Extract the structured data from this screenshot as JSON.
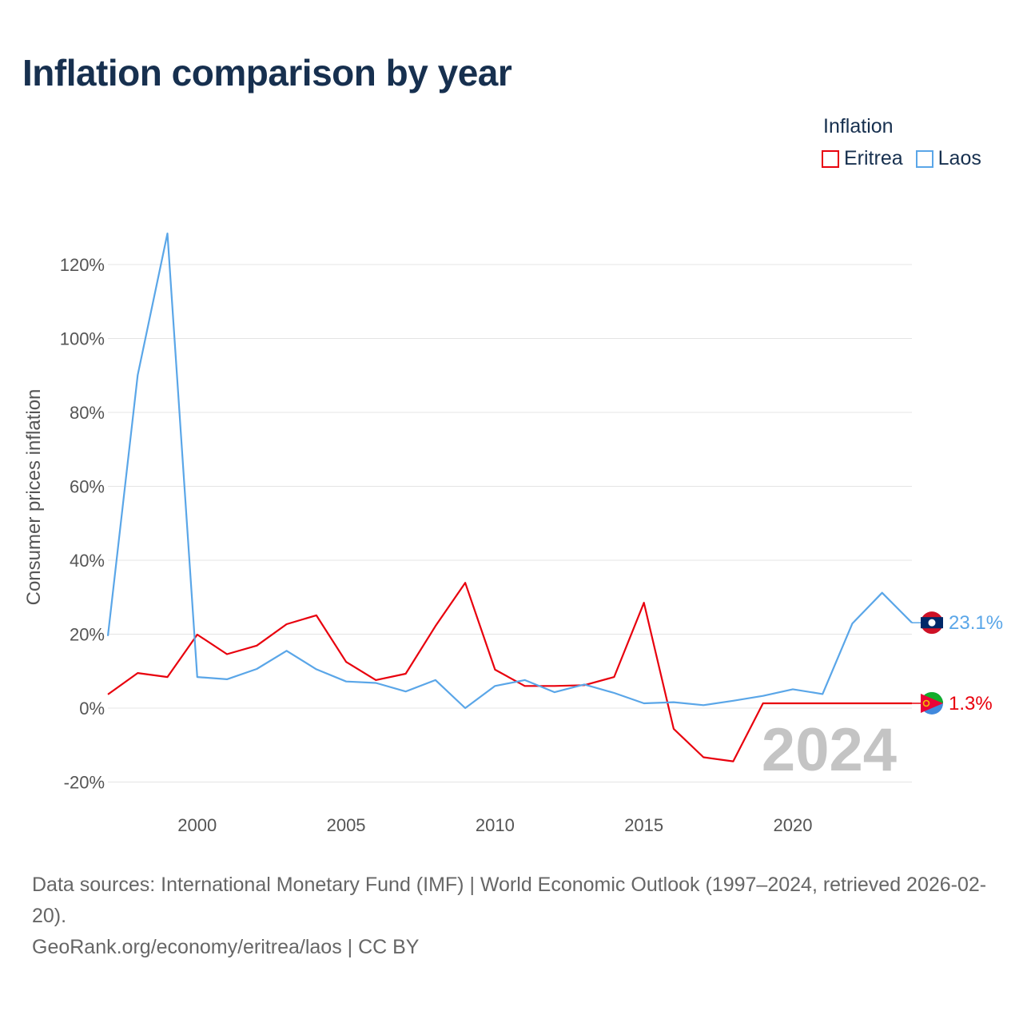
{
  "title": "Inflation comparison by year",
  "legend": {
    "title": "Inflation",
    "items": [
      {
        "label": "Eritrea",
        "color": "#e8000d"
      },
      {
        "label": "Laos",
        "color": "#5aa6e8"
      }
    ]
  },
  "year_watermark": "2024",
  "footer": {
    "line1": "Data sources: International Monetary Fund (IMF) | World Economic Outlook (1997–2024, retrieved 2026-02-20).",
    "line2": "GeoRank.org/economy/eritrea/laos | CC BY"
  },
  "chart_data": {
    "type": "line",
    "title": "Inflation comparison by year",
    "xlabel": "",
    "ylabel": "Consumer prices inflation",
    "x": [
      1997,
      1998,
      1999,
      2000,
      2001,
      2002,
      2003,
      2004,
      2005,
      2006,
      2007,
      2008,
      2009,
      2010,
      2011,
      2012,
      2013,
      2014,
      2015,
      2016,
      2017,
      2018,
      2019,
      2020,
      2021,
      2022,
      2023,
      2024
    ],
    "xlim": [
      1997,
      2024
    ],
    "ylim": [
      -25,
      130
    ],
    "xticks": [
      2000,
      2005,
      2010,
      2015,
      2020
    ],
    "yticks": [
      -20,
      0,
      20,
      40,
      60,
      80,
      100,
      120
    ],
    "ytick_labels": [
      "-20%",
      "0%",
      "20%",
      "40%",
      "60%",
      "80%",
      "100%",
      "120%"
    ],
    "grid": true,
    "legend_position": "top-right",
    "series": [
      {
        "name": "Eritrea",
        "color": "#e8000d",
        "values": [
          3.7,
          9.5,
          8.4,
          19.9,
          14.6,
          16.9,
          22.7,
          25.1,
          12.5,
          7.6,
          9.3,
          22.2,
          33.9,
          10.4,
          6.0,
          6.0,
          6.2,
          8.4,
          28.5,
          -5.6,
          -13.3,
          -14.4,
          1.3,
          1.3,
          1.3,
          1.3,
          1.3,
          1.3
        ],
        "end_label": "1.3%"
      },
      {
        "name": "Laos",
        "color": "#5aa6e8",
        "values": [
          19.5,
          90.1,
          128.4,
          8.4,
          7.8,
          10.6,
          15.5,
          10.5,
          7.2,
          6.8,
          4.5,
          7.6,
          0.0,
          6.0,
          7.6,
          4.3,
          6.4,
          4.1,
          1.3,
          1.6,
          0.8,
          2.0,
          3.3,
          5.1,
          3.8,
          22.9,
          31.2,
          23.1
        ],
        "end_label": "23.1%"
      }
    ]
  }
}
